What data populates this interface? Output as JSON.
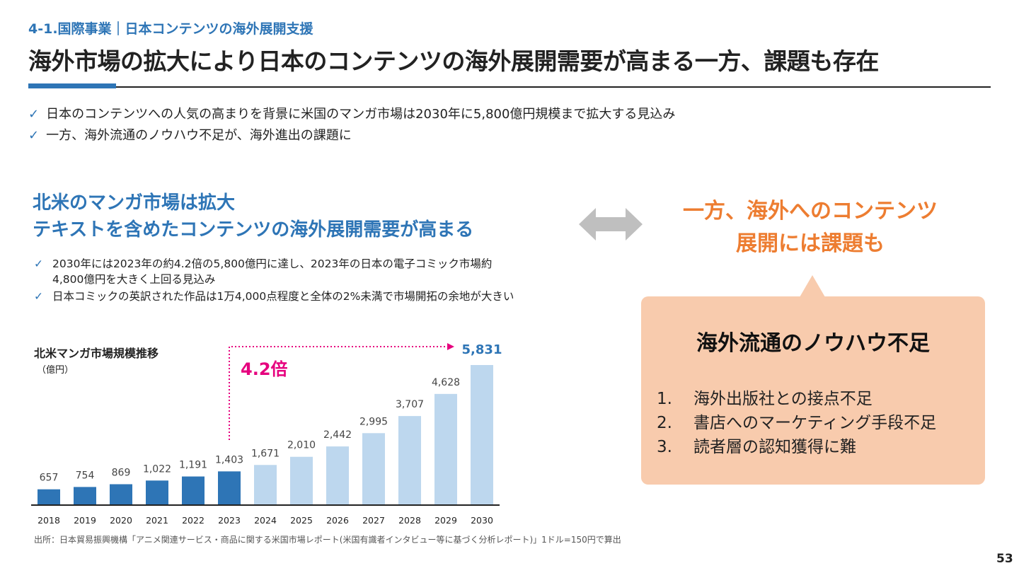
{
  "header": {
    "section": "4-1.国際事業｜日本コンテンツの海外展開支援",
    "title": "海外市場の拡大により日本のコンテンツの海外展開需要が高まる一方、課題も存在"
  },
  "bullets": [
    "日本のコンテンツへの人気の高まりを背景に米国のマンガ市場は2030年に5,800億円規模まで拡大する見込み",
    "一方、海外流通のノウハウ不足が、海外進出の課題に"
  ],
  "left": {
    "headline": [
      "北米のマンガ市場は拡大",
      "テキストを含めたコンテンツの海外展開需要が高まる"
    ],
    "points": [
      "2030年には2023年の約4.2倍の5,800億円に達し、2023年の日本の電子コミック市場約4,800億円を大きく上回る見込み",
      "日本コミックの英訳された作品は1万4,000点程度と全体の2%未満で市場開拓の余地が大きい"
    ]
  },
  "right": {
    "headline": [
      "一方、海外へのコンテンツ",
      "展開には課題も"
    ],
    "box_title": "海外流通のノウハウ不足",
    "items": [
      {
        "num": "1.",
        "text": "海外出版社との接点不足"
      },
      {
        "num": "2.",
        "text": "書店へのマーケティング手段不足"
      },
      {
        "num": "3.",
        "text": "読者層の認知獲得に難"
      }
    ]
  },
  "chart_data": {
    "type": "bar",
    "title": "北米マンガ市場規模推移",
    "unit": "（億円）",
    "categories": [
      "2018",
      "2019",
      "2020",
      "2021",
      "2022",
      "2023",
      "2024",
      "2025",
      "2026",
      "2027",
      "2028",
      "2029",
      "2030"
    ],
    "values": [
      657,
      754,
      869,
      1022,
      1191,
      1403,
      1671,
      2010,
      2442,
      2995,
      3707,
      4628,
      5831
    ],
    "labels": [
      "657",
      "754",
      "869",
      "1,022",
      "1,191",
      "1,403",
      "1,671",
      "2,010",
      "2,442",
      "2,995",
      "3,707",
      "4,628",
      "5,831"
    ],
    "actual_color": "#2e75b6",
    "forecast_color": "#bdd7ee",
    "forecast_from": "2024",
    "annotation": "4.2倍",
    "annotation_color": "#e6007e",
    "ylim": [
      0,
      5831
    ],
    "grid": false
  },
  "source": "出所：日本貿易振興機構「アニメ関連サービス・商品に関する米国市場レポート(米国有識者インタビュー等に基づく分析レポート)」1ドル=150円で算出",
  "page_number": "53"
}
